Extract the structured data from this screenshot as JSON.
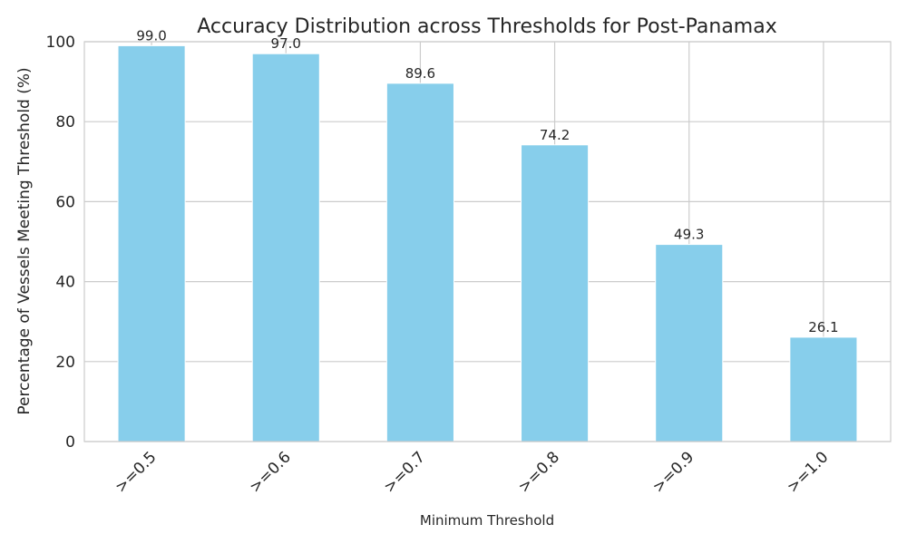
{
  "chart_data": {
    "type": "bar",
    "title": "Accuracy Distribution across Thresholds for Post-Panamax",
    "xlabel": "Minimum Threshold",
    "ylabel": "Percentage of Vessels Meeting Threshold (%)",
    "categories": [
      ">=0.5",
      ">=0.6",
      ">=0.7",
      ">=0.8",
      ">=0.9",
      ">=1.0"
    ],
    "values": [
      99.0,
      97.0,
      89.6,
      74.2,
      49.3,
      26.1
    ],
    "data_labels": [
      "99.0",
      "97.0",
      "89.6",
      "74.2",
      "49.3",
      "26.1"
    ],
    "ylim": [
      0,
      100
    ],
    "yticks": [
      0,
      20,
      40,
      60,
      80,
      100
    ],
    "grid": true,
    "bar_color": "#87CEEB",
    "grid_color": "#cccccc",
    "text_color": "#262626"
  }
}
